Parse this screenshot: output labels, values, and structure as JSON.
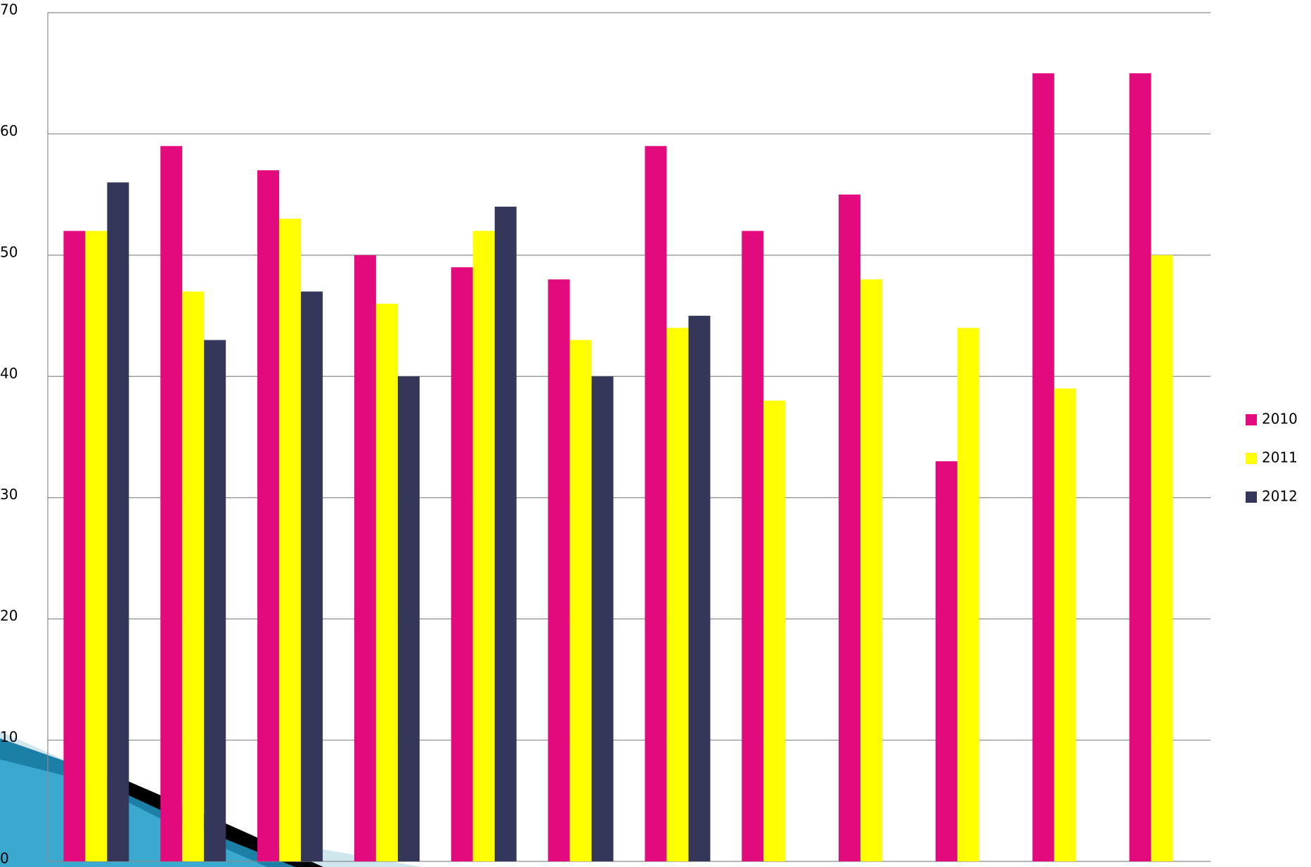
{
  "chart_data": {
    "type": "bar",
    "categories": [
      null,
      null,
      null,
      null,
      null,
      null,
      null,
      null,
      null,
      null,
      null,
      null
    ],
    "series": [
      {
        "name": "2010",
        "color": "#e20a7c",
        "values": [
          52,
          59,
          57,
          50,
          49,
          48,
          59,
          52,
          55,
          33,
          65,
          65
        ]
      },
      {
        "name": "2011",
        "color": "#ffff00",
        "values": [
          52,
          47,
          53,
          46,
          52,
          43,
          44,
          38,
          48,
          44,
          39,
          50
        ]
      },
      {
        "name": "2012",
        "color": "#35375a",
        "values": [
          56,
          43,
          47,
          40,
          54,
          40,
          45,
          null,
          null,
          null,
          null,
          null
        ]
      }
    ],
    "ylim": [
      0,
      70
    ],
    "yticks": [
      0,
      10,
      20,
      30,
      40,
      50,
      60,
      70
    ],
    "grid": true,
    "legend": "right"
  }
}
